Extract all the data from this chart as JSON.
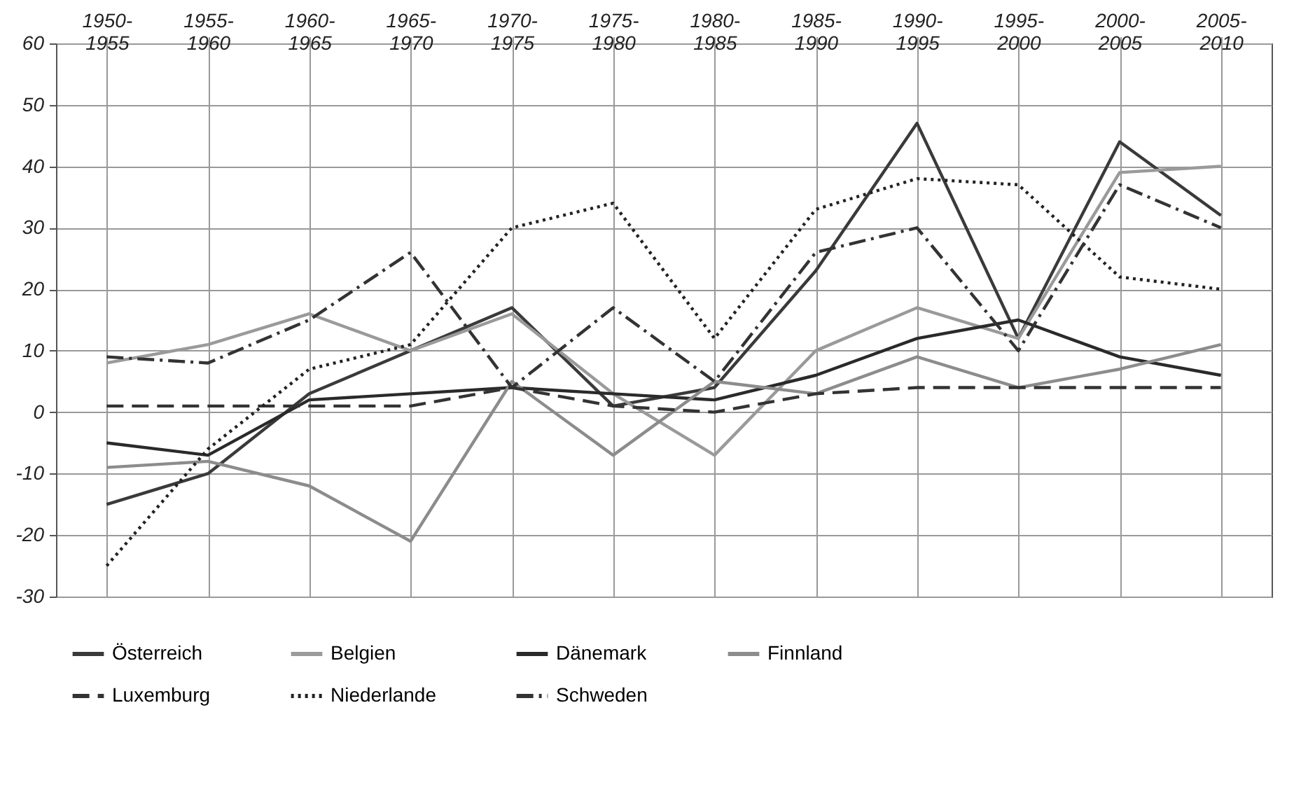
{
  "chart_data": {
    "type": "line",
    "categories": [
      "1950-1955",
      "1955-1960",
      "1960-1965",
      "1965-1970",
      "1970-1975",
      "1975-1980",
      "1980-1985",
      "1985-1990",
      "1990-1995",
      "1995-2000",
      "2000-2005",
      "2005-2010"
    ],
    "ylim": [
      -30,
      60
    ],
    "yticks": [
      -30,
      -20,
      -10,
      0,
      10,
      20,
      30,
      40,
      50,
      60
    ],
    "grid": true,
    "legend": "bottom",
    "series": [
      {
        "name": "Österreich",
        "color": "#3a3a3a",
        "line_style": "solid",
        "values": [
          -15,
          -10,
          3,
          10,
          17,
          1,
          4,
          23,
          47,
          12,
          44,
          32
        ]
      },
      {
        "name": "Belgien",
        "color": "#9a9a9a",
        "line_style": "solid",
        "values": [
          8,
          11,
          16,
          10,
          16,
          3,
          -7,
          10,
          17,
          12,
          39,
          40
        ]
      },
      {
        "name": "Dänemark",
        "color": "#2a2a2a",
        "line_style": "solid",
        "values": [
          -5,
          -7,
          2,
          3,
          4,
          3,
          2,
          6,
          12,
          15,
          9,
          6
        ]
      },
      {
        "name": "Finnland",
        "color": "#8c8c8c",
        "line_style": "solid",
        "values": [
          -9,
          -8,
          -12,
          -21,
          5,
          -7,
          5,
          3,
          9,
          4,
          7,
          11
        ]
      },
      {
        "name": "Luxemburg",
        "color": "#333333",
        "line_style": "dashed",
        "values": [
          1,
          1,
          1,
          1,
          4,
          1,
          0,
          3,
          4,
          4,
          4,
          4
        ]
      },
      {
        "name": "Niederlande",
        "color": "#222222",
        "line_style": "dotted",
        "values": [
          -25,
          -6,
          7,
          11,
          30,
          34,
          12,
          33,
          38,
          37,
          22,
          20
        ]
      },
      {
        "name": "Schweden",
        "color": "#333333",
        "line_style": "dashdot",
        "values": [
          9,
          8,
          15,
          26,
          4,
          17,
          5,
          26,
          30,
          10,
          37,
          30
        ]
      }
    ]
  }
}
